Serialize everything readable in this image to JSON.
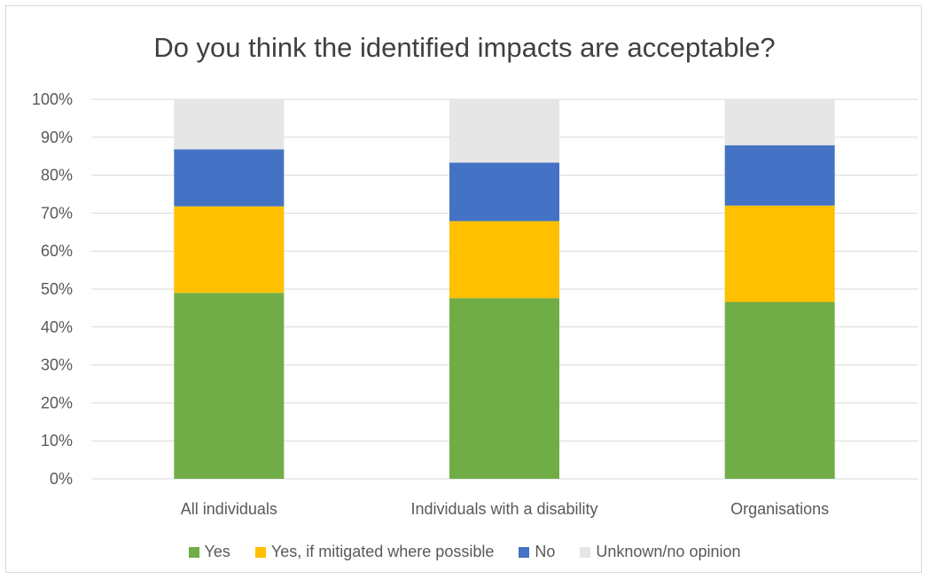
{
  "chart_data": {
    "type": "bar",
    "stacked": true,
    "title": "Do you think the identified impacts are acceptable?",
    "categories": [
      "All individuals",
      "Individuals with a disability",
      "Organisations"
    ],
    "ylim": [
      0,
      100
    ],
    "y_ticks": [
      "0%",
      "10%",
      "20%",
      "30%",
      "40%",
      "50%",
      "60%",
      "70%",
      "80%",
      "90%",
      "100%"
    ],
    "grid": true,
    "legend_position": "bottom",
    "series": [
      {
        "name": "Yes",
        "color": "#70ad47",
        "values": [
          49,
          47.6,
          46.6
        ]
      },
      {
        "name": "Yes, if mitigated where possible",
        "color": "#ffc000",
        "values": [
          22.8,
          20.3,
          25.4
        ]
      },
      {
        "name": "No",
        "color": "#4472c4",
        "values": [
          15,
          15.4,
          15.9
        ]
      },
      {
        "name": "Unknown/no opinion",
        "color": "#e7e6e6",
        "values": [
          13.2,
          16.7,
          12.1
        ]
      }
    ]
  }
}
